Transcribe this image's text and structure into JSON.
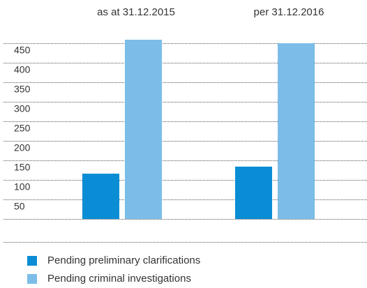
{
  "chart_data": {
    "type": "bar",
    "categories": [
      "as at 31.12.2015",
      "per 31.12.2016"
    ],
    "series": [
      {
        "name": "Pending preliminary clarifications",
        "color": "#0a8dd5",
        "values": [
          116,
          134
        ]
      },
      {
        "name": "Pending criminal investigations",
        "color": "#7bbde8",
        "values": [
          459,
          450
        ]
      }
    ],
    "ylim": [
      0,
      450
    ],
    "yticks": [
      50,
      100,
      150,
      200,
      250,
      300,
      350,
      400,
      450
    ],
    "grid": true
  }
}
